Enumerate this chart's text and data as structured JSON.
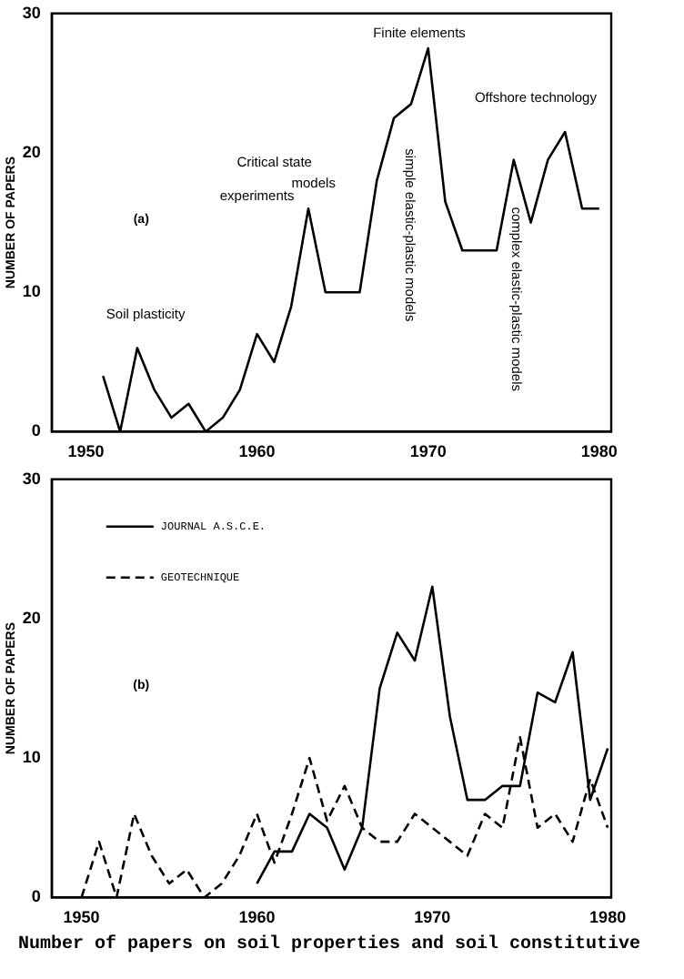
{
  "chart_data": [
    {
      "type": "line",
      "title": "(a)",
      "ylabel": "NUMBER OF PAPERS",
      "x": [
        1951,
        1952,
        1953,
        1954,
        1955,
        1956,
        1957,
        1958,
        1959,
        1960,
        1961,
        1962,
        1963,
        1964,
        1965,
        1966,
        1967,
        1968,
        1969,
        1970,
        1971,
        1972,
        1973,
        1974,
        1975,
        1976,
        1977,
        1978,
        1979,
        1980
      ],
      "series": [
        {
          "color": "#000000",
          "values": [
            4,
            0,
            6,
            3,
            1,
            2,
            0,
            1,
            3,
            7,
            5,
            9,
            16,
            10,
            10,
            10,
            18,
            22.5,
            23.5,
            27.5,
            16.5,
            13,
            13,
            13,
            19.5,
            15,
            19.5,
            21.5,
            16,
            16
          ]
        }
      ],
      "xlim": [
        1948,
        1980.7
      ],
      "xticks": [
        1950,
        1960,
        1970,
        1980
      ],
      "ylim": [
        0,
        30
      ],
      "yticks": [
        0,
        10,
        20,
        30
      ],
      "grid": false,
      "line_style": "solid",
      "marker": "none",
      "annotations": [
        "Soil plasticity",
        "Critical state",
        "models",
        "experiments",
        "Finite elements",
        "simple elastic-plastic models",
        "complex elastic-plastic models",
        "Offshore technology"
      ]
    },
    {
      "type": "line",
      "title": "(b)",
      "ylabel": "NUMBER OF PAPERS",
      "legend": "top left",
      "series": [
        {
          "name": "JOURNAL A.S.C.E.",
          "color": "#000000",
          "line_style": "solid",
          "x": [
            1960,
            1961,
            1962,
            1963,
            1964,
            1965,
            1966,
            1967,
            1968,
            1969,
            1970,
            1971,
            1972,
            1973,
            1974,
            1975,
            1976,
            1977,
            1978,
            1979,
            1980
          ],
          "values": [
            1,
            3.3,
            3.3,
            6,
            5,
            2,
            5,
            15,
            19,
            17,
            22.3,
            13,
            7,
            7,
            8,
            8,
            14.7,
            14,
            17.6,
            7,
            10.7
          ]
        },
        {
          "name": "GEOTECHNIQUE",
          "color": "#000000",
          "line_style": "dashed",
          "x": [
            1950,
            1951,
            1952,
            1953,
            1954,
            1955,
            1956,
            1957,
            1958,
            1959,
            1960,
            1961,
            1962,
            1963,
            1964,
            1965,
            1966,
            1967,
            1968,
            1969,
            1970,
            1971,
            1972,
            1973,
            1974,
            1975,
            1976,
            1977,
            1978,
            1979,
            1980
          ],
          "values": [
            0,
            4,
            0,
            6,
            3,
            1,
            2,
            0,
            1,
            3,
            6,
            2.5,
            6,
            10,
            5.5,
            8,
            5,
            4,
            4,
            6,
            5,
            4,
            3,
            6,
            5,
            11.5,
            5,
            6,
            4,
            8.5,
            5
          ]
        }
      ],
      "xlim": [
        1948.3,
        1980.2
      ],
      "xticks": [
        1950,
        1960,
        1970,
        1980
      ],
      "ylim": [
        0,
        30
      ],
      "yticks": [
        0,
        10,
        20,
        30
      ],
      "grid": false,
      "marker": "none",
      "annotations": [
        "Number of papers on soil properties and soil constitutive"
      ]
    }
  ]
}
